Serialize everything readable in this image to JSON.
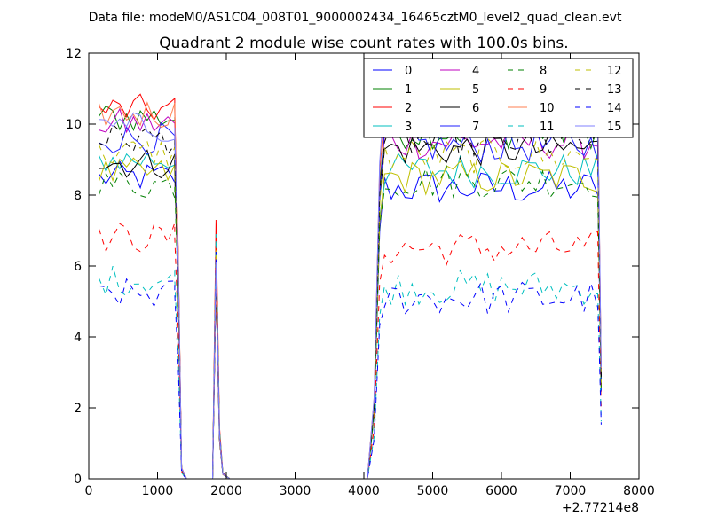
{
  "chart_data": {
    "type": "line",
    "suptitle": "Data file: modeM0/AS1C04_008T01_9000002434_16465cztM0_level2_quad_clean.evt",
    "title": "Quadrant 2 module wise count rates with 100.0s bins.",
    "xlabel": "",
    "ylabel": "",
    "xlim": [
      0,
      8000
    ],
    "ylim": [
      0,
      12
    ],
    "x_offset_label": "+2.77214e8",
    "xticks": [
      "0",
      "1000",
      "2000",
      "3000",
      "4000",
      "5000",
      "6000",
      "7000",
      "8000"
    ],
    "yticks": [
      "0",
      "2",
      "4",
      "6",
      "8",
      "10",
      "12"
    ],
    "grid": false,
    "legend_placement": "top-right",
    "legend_columns": 4,
    "segments": {
      "early_x": [
        150,
        250,
        350,
        450,
        550,
        650,
        750,
        850,
        950,
        1050,
        1150,
        1250
      ],
      "late_x": [
        4300,
        4400,
        4500,
        4600,
        4700,
        4800,
        4900,
        5000,
        5100,
        5200,
        5300,
        5400,
        5500,
        5600,
        5700,
        5800,
        5900,
        6000,
        6100,
        6200,
        6300,
        6400,
        6500,
        6600,
        6700,
        6800,
        6900,
        7000,
        7100,
        7200,
        7300,
        7400
      ],
      "transition_x": [
        1250,
        1300,
        1350,
        1420,
        1750,
        1800,
        1850,
        1900,
        1950,
        2050,
        4050,
        4150,
        4230,
        7380,
        7420,
        7450
      ],
      "transition_shape": [
        1.0,
        0.62,
        0.03,
        0.0,
        0.0,
        0.0,
        0.9,
        0.18,
        0.02,
        0.0,
        0.0,
        0.22,
        0.85,
        1.0,
        0.75,
        0.3
      ],
      "peak_levels": [
        5.6,
        6.6,
        7.3,
        5.8,
        6.4,
        6.5,
        5.4,
        5.9,
        6.2,
        6.7,
        5.5,
        6.9,
        6.3,
        5.7,
        6.4,
        6.1
      ]
    },
    "series": [
      {
        "name": "0",
        "color": "#0000ff",
        "dash": "solid",
        "early_level": 8.5,
        "late_level": 8.2
      },
      {
        "name": "1",
        "color": "#008000",
        "dash": "solid",
        "early_level": 10.2,
        "late_level": 9.8
      },
      {
        "name": "2",
        "color": "#ff0000",
        "dash": "solid",
        "early_level": 10.4,
        "late_level": 10.2
      },
      {
        "name": "3",
        "color": "#00bfbf",
        "dash": "solid",
        "early_level": 9.0,
        "late_level": 8.7
      },
      {
        "name": "4",
        "color": "#bf00bf",
        "dash": "solid",
        "early_level": 10.0,
        "late_level": 9.5
      },
      {
        "name": "5",
        "color": "#bfbf00",
        "dash": "solid",
        "early_level": 8.6,
        "late_level": 8.5
      },
      {
        "name": "6",
        "color": "#000000",
        "dash": "solid",
        "early_level": 8.9,
        "late_level": 9.3
      },
      {
        "name": "7",
        "color": "#1f1fff",
        "dash": "solid",
        "early_level": 9.6,
        "late_level": 9.4
      },
      {
        "name": "8",
        "color": "#008000",
        "dash": "dashed",
        "early_level": 8.3,
        "late_level": 8.4
      },
      {
        "name": "9",
        "color": "#ff0000",
        "dash": "dashed",
        "early_level": 6.8,
        "late_level": 6.5
      },
      {
        "name": "10",
        "color": "#ff7f50",
        "dash": "solid",
        "early_level": 10.3,
        "late_level": 10.4
      },
      {
        "name": "11",
        "color": "#00bfbf",
        "dash": "dashed",
        "early_level": 5.6,
        "late_level": 5.4
      },
      {
        "name": "12",
        "color": "#bfbf00",
        "dash": "dashed",
        "early_level": 9.2,
        "late_level": 9.1
      },
      {
        "name": "13",
        "color": "#000000",
        "dash": "dashed",
        "early_level": 9.6,
        "late_level": 9.5
      },
      {
        "name": "14",
        "color": "#0000ff",
        "dash": "dashed",
        "early_level": 5.2,
        "late_level": 5.1
      },
      {
        "name": "15",
        "color": "#8080ff",
        "dash": "solid",
        "early_level": 9.9,
        "late_level": 10.5
      }
    ]
  }
}
